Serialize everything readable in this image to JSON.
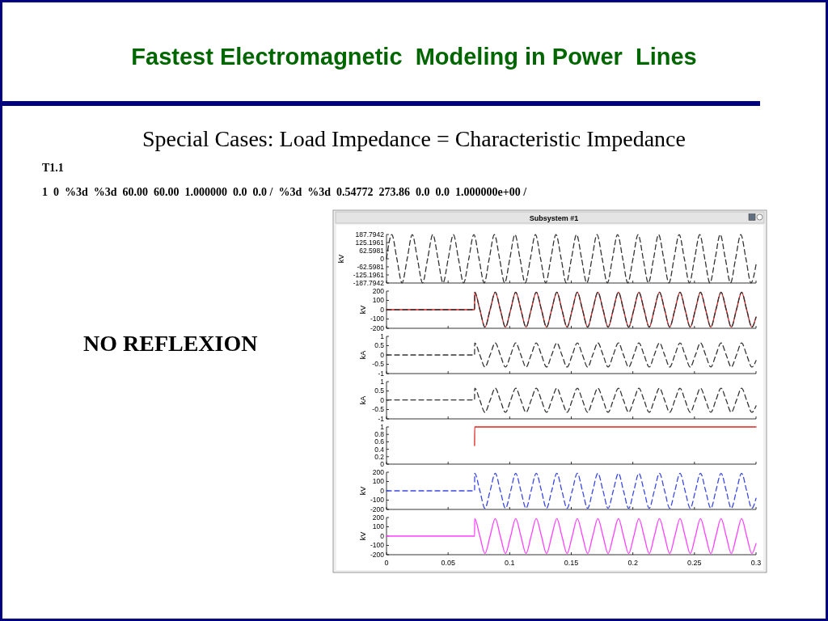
{
  "chart_data": [
    {
      "type": "line",
      "title": "Fastest Electromagnetic  Modeling in Power  Lines",
      "subtitle": "Special Cases: Load Impedance = Characteristic Impedance",
      "annotations": [
        "T1.1",
        "1  0  %3d  %3d  60.00  60.00  1.000000  0.0  0.0 /  %3d  %3d  0.54772  273.86  0.0  0.0  1.000000e+00 /",
        "NO REFLEXION",
        "Subsystem #1"
      ],
      "ylabel": "kV",
      "xlim": [
        0,
        0.3
      ],
      "xticks": [
        0,
        0.05,
        0.1,
        0.15,
        0.2,
        0.25,
        0.3
      ],
      "ylim": [
        -187.7942,
        187.7942
      ],
      "yticks": [
        187.7942,
        125.1961,
        62.5981,
        0,
        -62.5981,
        -125.1961,
        -187.7942
      ],
      "tick_labels": "y",
      "series": [
        {
          "color": "#333333",
          "line_style": "dashed",
          "x": [
            0,
            0.0043,
            0.0084,
            0.0126,
            0.0168,
            0.0209,
            0.0251,
            0.0293,
            0.0334,
            0.0376,
            0.0418,
            0.0459,
            0.0501,
            0.0543,
            0.0584,
            0.0626,
            0.0668,
            0.0709,
            0.0751,
            0.0793,
            0.0834,
            0.0876,
            0.0918,
            0.0959,
            0.1001,
            0.1043,
            0.1084,
            0.1126,
            0.1168,
            0.1209,
            0.1251,
            0.1293,
            0.1334,
            0.1376,
            0.1418,
            0.1459,
            0.1501,
            0.1543,
            0.1584,
            0.1626,
            0.1668,
            0.1709,
            0.1751,
            0.1793,
            0.1834,
            0.1876,
            0.1918,
            0.1959,
            0.2001,
            0.2043,
            0.2084,
            0.2126,
            0.2168,
            0.2209,
            0.2251,
            0.2293,
            0.2334,
            0.2376,
            0.2418,
            0.2459,
            0.2501,
            0.2543,
            0.2584,
            0.2626,
            0.2668,
            0.2709,
            0.2751,
            0.2793,
            0.2834,
            0.2876,
            0.2918,
            0.2959,
            0.3
          ],
          "values": [
            0,
            187,
            0,
            -187,
            0,
            187,
            0,
            -187,
            0,
            187,
            0,
            -187,
            0,
            187,
            0,
            -187,
            0,
            187,
            0,
            -187,
            0,
            187,
            0,
            -187,
            0,
            187,
            0,
            -187,
            0,
            187,
            0,
            -187,
            0,
            187,
            0,
            -187,
            0,
            187,
            0,
            -187,
            0,
            187,
            0,
            -187,
            0,
            187,
            0,
            -187,
            0,
            187,
            0,
            -187,
            0,
            187,
            0,
            -187,
            0,
            187,
            0,
            -187,
            0,
            187,
            0,
            -187,
            0,
            187,
            0,
            -187,
            0,
            187,
            0,
            -187,
            -45
          ]
        }
      ]
    },
    {
      "type": "line",
      "ylabel": "kV",
      "xlim": [
        0,
        0.3
      ],
      "xticks": [
        0,
        0.05,
        0.1,
        0.15,
        0.2,
        0.25,
        0.3
      ],
      "ylim": [
        -200,
        200
      ],
      "yticks": [
        200,
        100,
        0,
        -100,
        -200
      ],
      "tick_labels": "y",
      "series": [
        {
          "color": "#e02020",
          "line_style": "solid",
          "x": [
            0,
            0.0715,
            0.0716,
            0.0758,
            0.0799,
            0.0841,
            0.0883,
            0.0924,
            0.0966,
            0.1008,
            0.1049,
            0.1091,
            0.1133,
            0.1174,
            0.1216,
            0.1258,
            0.1299,
            0.1341,
            0.1383,
            0.1424,
            0.1466,
            0.1508,
            0.1549,
            0.1591,
            0.1633,
            0.1674,
            0.1716,
            0.1758,
            0.1799,
            0.1841,
            0.1883,
            0.1924,
            0.1966,
            0.2008,
            0.2049,
            0.2091,
            0.2133,
            0.2174,
            0.2216,
            0.2258,
            0.2299,
            0.2341,
            0.2383,
            0.2424,
            0.2466,
            0.2508,
            0.2549,
            0.2591,
            0.2633,
            0.2674,
            0.2716,
            0.2758,
            0.2799,
            0.2841,
            0.2883,
            0.2924,
            0.2966,
            0.3
          ],
          "values": [
            0,
            0,
            188,
            0,
            -188,
            0,
            188,
            0,
            -188,
            0,
            188,
            0,
            -188,
            0,
            188,
            0,
            -188,
            0,
            188,
            0,
            -188,
            0,
            188,
            0,
            -188,
            0,
            188,
            0,
            -188,
            0,
            188,
            0,
            -188,
            0,
            188,
            0,
            -188,
            0,
            188,
            0,
            -188,
            0,
            188,
            0,
            -188,
            0,
            188,
            0,
            -188,
            0,
            188,
            0,
            -188,
            0,
            188,
            0,
            -188,
            -80
          ]
        },
        {
          "color": "#333333",
          "line_style": "dashed",
          "x": [
            0,
            0.0715,
            0.0716,
            0.0758,
            0.0799,
            0.0841,
            0.0883,
            0.0924,
            0.0966,
            0.1008,
            0.1049,
            0.1091,
            0.1133,
            0.1174,
            0.1216,
            0.1258,
            0.1299,
            0.1341,
            0.1383,
            0.1424,
            0.1466,
            0.1508,
            0.1549,
            0.1591,
            0.1633,
            0.1674,
            0.1716,
            0.1758,
            0.1799,
            0.1841,
            0.1883,
            0.1924,
            0.1966,
            0.2008,
            0.2049,
            0.2091,
            0.2133,
            0.2174,
            0.2216,
            0.2258,
            0.2299,
            0.2341,
            0.2383,
            0.2424,
            0.2466,
            0.2508,
            0.2549,
            0.2591,
            0.2633,
            0.2674,
            0.2716,
            0.2758,
            0.2799,
            0.2841,
            0.2883,
            0.2924,
            0.2966,
            0.3
          ],
          "values": [
            0,
            0,
            188,
            0,
            -188,
            0,
            188,
            0,
            -188,
            0,
            188,
            0,
            -188,
            0,
            188,
            0,
            -188,
            0,
            188,
            0,
            -188,
            0,
            188,
            0,
            -188,
            0,
            188,
            0,
            -188,
            0,
            188,
            0,
            -188,
            0,
            188,
            0,
            -188,
            0,
            188,
            0,
            -188,
            0,
            188,
            0,
            -188,
            0,
            188,
            0,
            -188,
            0,
            188,
            0,
            -188,
            0,
            188,
            0,
            -188,
            -80
          ]
        }
      ]
    },
    {
      "type": "line",
      "ylabel": "kA",
      "xlim": [
        0,
        0.3
      ],
      "xticks": [
        0,
        0.05,
        0.1,
        0.15,
        0.2,
        0.25,
        0.3
      ],
      "ylim": [
        -1,
        1
      ],
      "yticks": [
        1,
        0.5,
        0,
        -0.5,
        -1
      ],
      "tick_labels": "y",
      "series": [
        {
          "color": "#333333",
          "line_style": "dashed",
          "x": [
            0,
            0.0715,
            0.0716,
            0.0758,
            0.0799,
            0.0841,
            0.0883,
            0.0924,
            0.0966,
            0.1008,
            0.1049,
            0.1091,
            0.1133,
            0.1174,
            0.1216,
            0.1258,
            0.1299,
            0.1341,
            0.1383,
            0.1424,
            0.1466,
            0.1508,
            0.1549,
            0.1591,
            0.1633,
            0.1674,
            0.1716,
            0.1758,
            0.1799,
            0.1841,
            0.1883,
            0.1924,
            0.1966,
            0.2008,
            0.2049,
            0.2091,
            0.2133,
            0.2174,
            0.2216,
            0.2258,
            0.2299,
            0.2341,
            0.2383,
            0.2424,
            0.2466,
            0.2508,
            0.2549,
            0.2591,
            0.2633,
            0.2674,
            0.2716,
            0.2758,
            0.2799,
            0.2841,
            0.2883,
            0.2924,
            0.2966,
            0.3
          ],
          "values": [
            0,
            0,
            0.65,
            0,
            -0.65,
            0,
            0.65,
            0,
            -0.65,
            0,
            0.65,
            0,
            -0.65,
            0,
            0.65,
            0,
            -0.65,
            0,
            0.65,
            0,
            -0.65,
            0,
            0.65,
            0,
            -0.65,
            0,
            0.65,
            0,
            -0.65,
            0,
            0.65,
            0,
            -0.65,
            0,
            0.65,
            0,
            -0.65,
            0,
            0.65,
            0,
            -0.65,
            0,
            0.65,
            0,
            -0.65,
            0,
            0.65,
            0,
            -0.65,
            0,
            0.65,
            0,
            -0.65,
            0,
            0.65,
            0,
            -0.65,
            -0.3
          ]
        }
      ]
    },
    {
      "type": "line",
      "ylabel": "kA",
      "xlim": [
        0,
        0.3
      ],
      "xticks": [
        0,
        0.05,
        0.1,
        0.15,
        0.2,
        0.25,
        0.3
      ],
      "ylim": [
        -1,
        1
      ],
      "yticks": [
        1,
        0.5,
        0,
        -0.5,
        -1
      ],
      "tick_labels": "y",
      "series": [
        {
          "color": "#333333",
          "line_style": "dashed",
          "x": [
            0,
            0.0715,
            0.0716,
            0.0758,
            0.0799,
            0.0841,
            0.0883,
            0.0924,
            0.0966,
            0.1008,
            0.1049,
            0.1091,
            0.1133,
            0.1174,
            0.1216,
            0.1258,
            0.1299,
            0.1341,
            0.1383,
            0.1424,
            0.1466,
            0.1508,
            0.1549,
            0.1591,
            0.1633,
            0.1674,
            0.1716,
            0.1758,
            0.1799,
            0.1841,
            0.1883,
            0.1924,
            0.1966,
            0.2008,
            0.2049,
            0.2091,
            0.2133,
            0.2174,
            0.2216,
            0.2258,
            0.2299,
            0.2341,
            0.2383,
            0.2424,
            0.2466,
            0.2508,
            0.2549,
            0.2591,
            0.2633,
            0.2674,
            0.2716,
            0.2758,
            0.2799,
            0.2841,
            0.2883,
            0.2924,
            0.2966,
            0.3
          ],
          "values": [
            0.02,
            0.02,
            0.65,
            0,
            -0.65,
            0,
            0.65,
            0,
            -0.65,
            0,
            0.65,
            0,
            -0.65,
            0,
            0.65,
            0,
            -0.65,
            0,
            0.65,
            0,
            -0.65,
            0,
            0.65,
            0,
            -0.65,
            0,
            0.65,
            0,
            -0.65,
            0,
            0.65,
            0,
            -0.65,
            0,
            0.65,
            0,
            -0.65,
            0,
            0.65,
            0,
            -0.65,
            0,
            0.65,
            0,
            -0.65,
            0,
            0.65,
            0,
            -0.65,
            0,
            0.65,
            0,
            -0.65,
            0,
            0.65,
            0,
            -0.65,
            -0.3
          ]
        }
      ]
    },
    {
      "type": "line",
      "xlim": [
        0,
        0.3
      ],
      "xticks": [
        0,
        0.05,
        0.1,
        0.15,
        0.2,
        0.25,
        0.3
      ],
      "ylim": [
        0,
        1
      ],
      "yticks": [
        0,
        0.2,
        0.4,
        0.6,
        0.8,
        1
      ],
      "tick_labels": "y",
      "series": [
        {
          "color": "#e02020",
          "line_style": "solid",
          "x": [
            0.0715,
            0.0716,
            0.3
          ],
          "values": [
            0.5,
            1,
            1
          ]
        }
      ]
    },
    {
      "type": "line",
      "ylabel": "kV",
      "xlim": [
        0,
        0.3
      ],
      "xticks": [
        0,
        0.05,
        0.1,
        0.15,
        0.2,
        0.25,
        0.3
      ],
      "ylim": [
        -200,
        200
      ],
      "yticks": [
        200,
        100,
        0,
        -100,
        -200
      ],
      "tick_labels": "y",
      "series": [
        {
          "color": "#3a48e0",
          "line_style": "dashed",
          "x": [
            0,
            0.0715,
            0.0716,
            0.0758,
            0.0799,
            0.0841,
            0.0883,
            0.0924,
            0.0966,
            0.1008,
            0.1049,
            0.1091,
            0.1133,
            0.1174,
            0.1216,
            0.1258,
            0.1299,
            0.1341,
            0.1383,
            0.1424,
            0.1466,
            0.1508,
            0.1549,
            0.1591,
            0.1633,
            0.1674,
            0.1716,
            0.1758,
            0.1799,
            0.1841,
            0.1883,
            0.1924,
            0.1966,
            0.2008,
            0.2049,
            0.2091,
            0.2133,
            0.2174,
            0.2216,
            0.2258,
            0.2299,
            0.2341,
            0.2383,
            0.2424,
            0.2466,
            0.2508,
            0.2549,
            0.2591,
            0.2633,
            0.2674,
            0.2716,
            0.2758,
            0.2799,
            0.2841,
            0.2883,
            0.2924,
            0.2966,
            0.3
          ],
          "values": [
            0,
            0,
            188,
            0,
            -188,
            0,
            188,
            0,
            -188,
            0,
            188,
            0,
            -188,
            0,
            188,
            0,
            -188,
            0,
            188,
            0,
            -188,
            0,
            188,
            0,
            -188,
            0,
            188,
            0,
            -188,
            0,
            188,
            0,
            -188,
            0,
            188,
            0,
            -188,
            0,
            188,
            0,
            -188,
            0,
            188,
            0,
            -188,
            0,
            188,
            0,
            -188,
            0,
            188,
            0,
            -188,
            0,
            188,
            0,
            -188,
            -80
          ]
        }
      ]
    },
    {
      "type": "line",
      "ylabel": "kV",
      "xlim": [
        0,
        0.3
      ],
      "xticks": [
        0,
        0.05,
        0.1,
        0.15,
        0.2,
        0.25,
        0.3
      ],
      "ylim": [
        -200,
        200
      ],
      "yticks": [
        200,
        100,
        0,
        -100,
        -200
      ],
      "series": [
        {
          "color": "#ff40ff",
          "line_style": "solid",
          "x": [
            0,
            0.0715,
            0.0716,
            0.0758,
            0.0799,
            0.0841,
            0.0883,
            0.0924,
            0.0966,
            0.1008,
            0.1049,
            0.1091,
            0.1133,
            0.1174,
            0.1216,
            0.1258,
            0.1299,
            0.1341,
            0.1383,
            0.1424,
            0.1466,
            0.1508,
            0.1549,
            0.1591,
            0.1633,
            0.1674,
            0.1716,
            0.1758,
            0.1799,
            0.1841,
            0.1883,
            0.1924,
            0.1966,
            0.2008,
            0.2049,
            0.2091,
            0.2133,
            0.2174,
            0.2216,
            0.2258,
            0.2299,
            0.2341,
            0.2383,
            0.2424,
            0.2466,
            0.2508,
            0.2549,
            0.2591,
            0.2633,
            0.2674,
            0.2716,
            0.2758,
            0.2799,
            0.2841,
            0.2883,
            0.2924,
            0.2966,
            0.3
          ],
          "values": [
            0,
            0,
            188,
            0,
            -188,
            0,
            188,
            0,
            -188,
            0,
            188,
            0,
            -188,
            0,
            188,
            0,
            -188,
            0,
            188,
            0,
            -188,
            0,
            188,
            0,
            -188,
            0,
            188,
            0,
            -188,
            0,
            188,
            0,
            -188,
            0,
            188,
            0,
            -188,
            0,
            188,
            0,
            -188,
            0,
            188,
            0,
            -188,
            0,
            188,
            0,
            -188,
            0,
            188,
            0,
            -188,
            0,
            188,
            0,
            -188,
            -80
          ]
        }
      ]
    }
  ]
}
